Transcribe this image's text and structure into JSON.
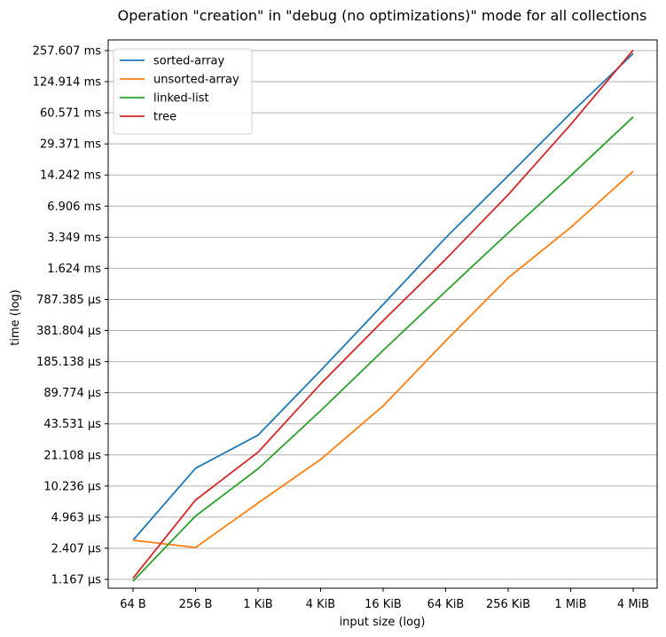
{
  "chart_data": {
    "type": "line",
    "title": "Operation \"creation\" in \"debug (no optimizations)\" mode for all collections",
    "xlabel": "input size (log)",
    "ylabel": "time (log)",
    "y_scale": "log2",
    "grid": "y",
    "legend_position": "top-left",
    "categories": [
      "64 B",
      "256 B",
      "1 KiB",
      "4 KiB",
      "16 KiB",
      "64 KiB",
      "256 KiB",
      "1 MiB",
      "4 MiB"
    ],
    "y_ticks": [
      {
        "value": 1.167,
        "label": "1.167 µs"
      },
      {
        "value": 2.407,
        "label": "2.407 µs"
      },
      {
        "value": 4.963,
        "label": "4.963 µs"
      },
      {
        "value": 10.236,
        "label": "10.236 µs"
      },
      {
        "value": 21.108,
        "label": "21.108 µs"
      },
      {
        "value": 43.531,
        "label": "43.531 µs"
      },
      {
        "value": 89.774,
        "label": "89.774 µs"
      },
      {
        "value": 185.138,
        "label": "185.138 µs"
      },
      {
        "value": 381.804,
        "label": "381.804 µs"
      },
      {
        "value": 787.385,
        "label": "787.385 µs"
      },
      {
        "value": 1624,
        "label": "1.624 ms"
      },
      {
        "value": 3349,
        "label": "3.349 ms"
      },
      {
        "value": 6906,
        "label": "6.906 ms"
      },
      {
        "value": 14242,
        "label": "14.242 ms"
      },
      {
        "value": 29371,
        "label": "29.371 ms"
      },
      {
        "value": 60571,
        "label": "60.571 ms"
      },
      {
        "value": 124914,
        "label": "124.914 ms"
      },
      {
        "value": 257607,
        "label": "257.607 ms"
      }
    ],
    "ylim": [
      0.95,
      330000
    ],
    "y_unit": "µs",
    "series": [
      {
        "name": "sorted-array",
        "color": "#1f77b4",
        "values": [
          2.9,
          15.5,
          33.5,
          150,
          700,
          3300,
          14000,
          60000,
          240000
        ]
      },
      {
        "name": "unsorted-array",
        "color": "#ff7f0e",
        "values": [
          2.9,
          2.45,
          6.9,
          19,
          66,
          300,
          1300,
          4200,
          15500
        ]
      },
      {
        "name": "linked-list",
        "color": "#2ca02c",
        "values": [
          1.12,
          5.1,
          15.3,
          59,
          240,
          950,
          3700,
          14000,
          55000
        ]
      },
      {
        "name": "tree",
        "color": "#d62728",
        "values": [
          1.2,
          7.4,
          22.5,
          110,
          480,
          2000,
          9000,
          46000,
          260000
        ]
      }
    ]
  }
}
